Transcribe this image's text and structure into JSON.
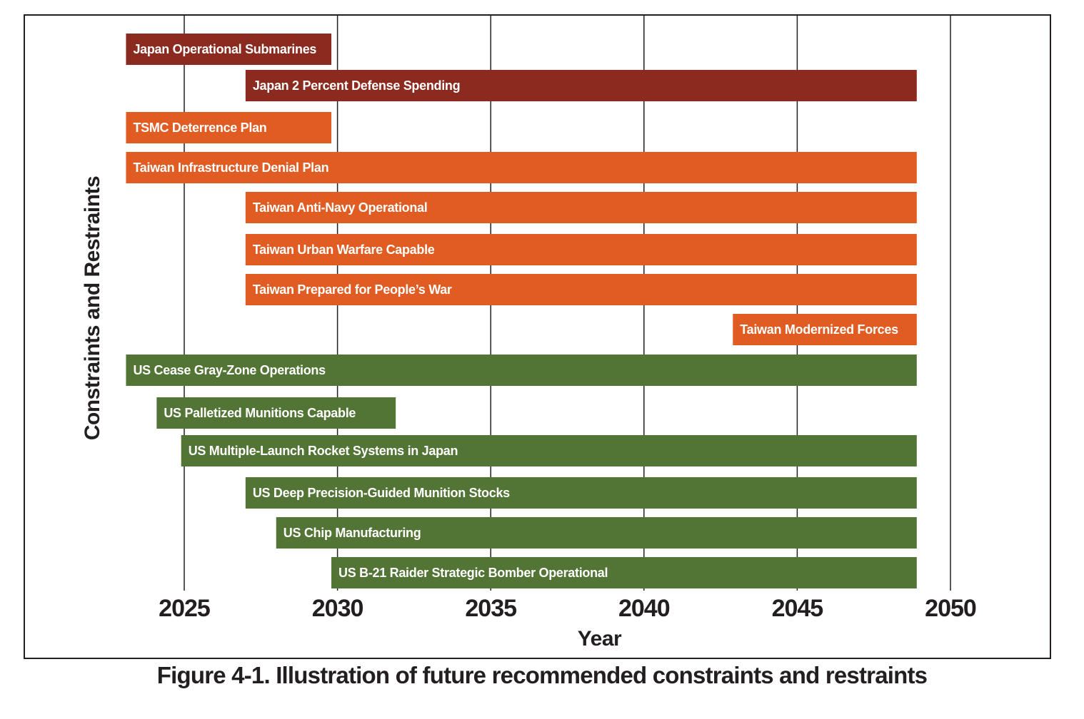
{
  "caption": "Figure 4-1. Illustration of future recommended constraints and restraints",
  "colors": {
    "japan": "#8b2a1f",
    "taiwan": "#e05c22",
    "us": "#527535",
    "grid": "#231f20",
    "text": "#231f20"
  },
  "chart_data": {
    "type": "bar",
    "orientation": "horizontal-timeline",
    "xlabel": "Year",
    "ylabel": "Constraints and Restraints",
    "xlim": [
      2022.8,
      2050
    ],
    "xticks": [
      2025,
      2030,
      2035,
      2040,
      2045,
      2050
    ],
    "grid": "vertical lines at ticks",
    "bars": [
      {
        "label": "Japan Operational Submarines",
        "start": 2023.1,
        "end": 2029.8,
        "group": "japan"
      },
      {
        "label": "Japan 2 Percent Defense Spending",
        "start": 2027,
        "end": 2048.9,
        "group": "japan"
      },
      {
        "label": "TSMC Deterrence Plan",
        "start": 2023.1,
        "end": 2029.8,
        "group": "taiwan"
      },
      {
        "label": "Taiwan Infrastructure Denial Plan",
        "start": 2023.1,
        "end": 2048.9,
        "group": "taiwan"
      },
      {
        "label": "Taiwan Anti-Navy Operational",
        "start": 2027,
        "end": 2048.9,
        "group": "taiwan"
      },
      {
        "label": "Taiwan Urban Warfare Capable",
        "start": 2027,
        "end": 2048.9,
        "group": "taiwan"
      },
      {
        "label": "Taiwan Prepared for People’s War",
        "start": 2027,
        "end": 2048.9,
        "group": "taiwan"
      },
      {
        "label": "Taiwan Modernized Forces",
        "start": 2042.9,
        "end": 2048.9,
        "group": "taiwan"
      },
      {
        "label": "US Cease Gray-Zone Operations",
        "start": 2023.1,
        "end": 2048.9,
        "group": "us"
      },
      {
        "label": "US Palletized Munitions Capable",
        "start": 2024.1,
        "end": 2031.9,
        "group": "us"
      },
      {
        "label": "US Multiple-Launch Rocket Systems in Japan",
        "start": 2024.9,
        "end": 2048.9,
        "group": "us"
      },
      {
        "label": "US Deep Precision-Guided Munition Stocks",
        "start": 2027,
        "end": 2048.9,
        "group": "us"
      },
      {
        "label": "US Chip Manufacturing",
        "start": 2028,
        "end": 2048.9,
        "group": "us"
      },
      {
        "label": "US B-21 Raider Strategic Bomber Operational",
        "start": 2029.8,
        "end": 2048.9,
        "group": "us"
      }
    ]
  }
}
